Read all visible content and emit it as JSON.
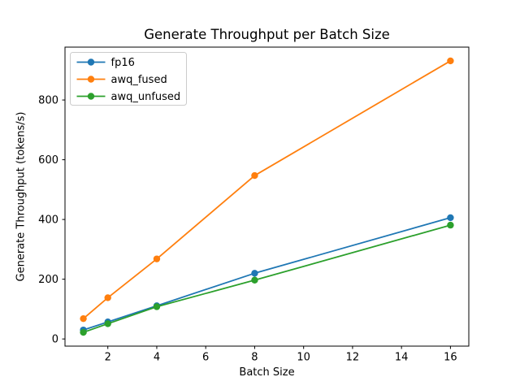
{
  "chart_data": {
    "type": "line",
    "title": "Generate Throughput per Batch Size",
    "xlabel": "Batch Size",
    "ylabel": "Generate Throughput (tokens/s)",
    "x": [
      1,
      2,
      4,
      8,
      16
    ],
    "series": [
      {
        "name": "fp16",
        "color": "#1f77b4",
        "values": [
          30,
          57,
          111,
          220,
          406
        ]
      },
      {
        "name": "awq_fused",
        "color": "#ff7f0e",
        "values": [
          68,
          138,
          268,
          547,
          931
        ]
      },
      {
        "name": "awq_unfused",
        "color": "#2ca02c",
        "values": [
          22,
          51,
          108,
          197,
          381
        ]
      }
    ],
    "xticks": [
      2,
      4,
      6,
      8,
      10,
      12,
      14,
      16
    ],
    "yticks": [
      0,
      200,
      400,
      600,
      800
    ],
    "xlim": [
      0.25,
      16.75
    ],
    "ylim": [
      -24,
      977
    ],
    "legend_position": "upper left",
    "grid": false,
    "marker": "circle",
    "background_color": "#ffffff",
    "spine_color": "#000000",
    "legend_border_color": "#cccccc"
  }
}
